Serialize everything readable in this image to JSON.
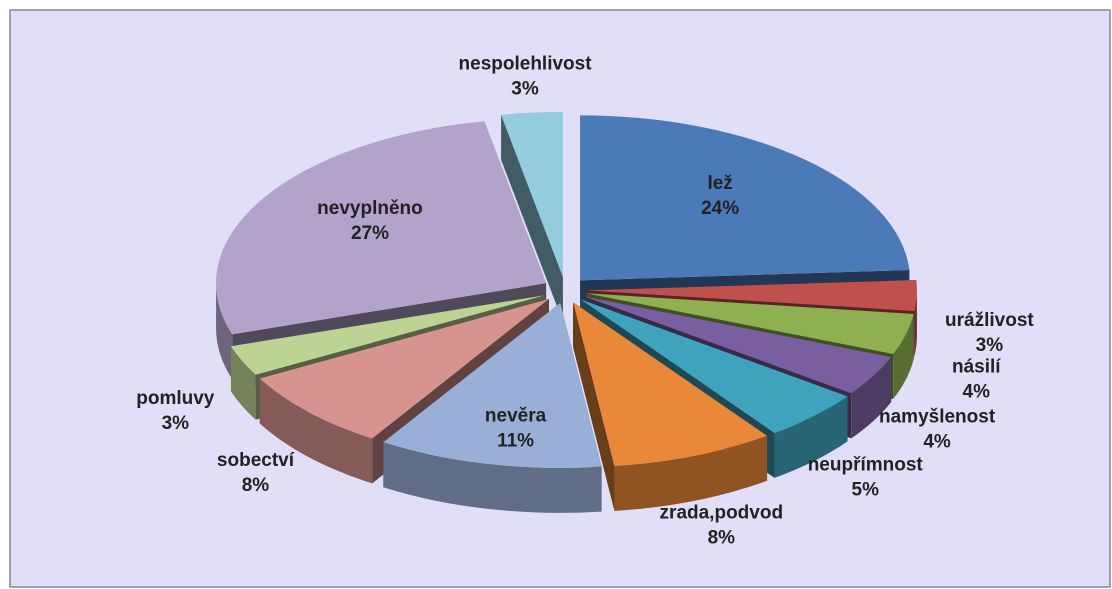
{
  "chart_data": {
    "type": "pie",
    "categories": [
      "lež",
      "urážlivost",
      "násilí",
      "namyšlenost",
      "neupřímnost",
      "zrada,podvod",
      "nevěra",
      "sobectví",
      "pomluvy",
      "nevyplněno",
      "nespolehlivost"
    ],
    "values": [
      24,
      3,
      4,
      4,
      5,
      8,
      11,
      8,
      3,
      27,
      3
    ],
    "value_labels": [
      "24%",
      "3%",
      "4%",
      "4%",
      "5%",
      "8%",
      "11%",
      "8%",
      "3%",
      "27%",
      "3%"
    ],
    "colors": [
      "#4a7ab8",
      "#c0504d",
      "#8fb050",
      "#7a5fa0",
      "#3fa3bd",
      "#e88838",
      "#9aafd8",
      "#d69390",
      "#bdd394",
      "#b1a3c9",
      "#93cddd"
    ]
  }
}
